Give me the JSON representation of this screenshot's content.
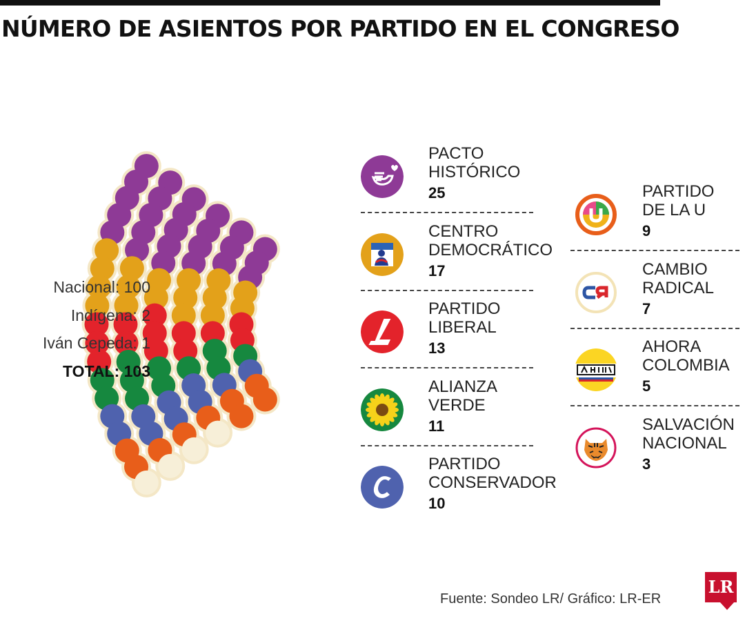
{
  "title": "NÚMERO DE ASIENTOS POR PARTIDO EN EL CONGRESO",
  "totals": {
    "nacional": "Nacional: 100",
    "indigena": "Indígena: 2",
    "cepeda": "Iván Cepeda: 1",
    "total": "TOTAL: 103"
  },
  "source": "Fuente: Sondeo LR/ Gráfico: LR-ER",
  "brand": "LR",
  "chart_data": {
    "type": "parliament",
    "title": "NÚMERO DE ASIENTOS POR PARTIDO EN EL CONGRESO",
    "categories": [
      "PACTO HISTÓRICO",
      "CENTRO DEMOCRÁTICO",
      "PARTIDO LIBERAL",
      "ALIANZA VERDE",
      "PARTIDO CONSERVADOR",
      "PARTIDO DE LA U",
      "CAMBIO RADICAL",
      "AHORA COLOMBIA",
      "SALVACIÓN NACIONAL"
    ],
    "values": [
      25,
      17,
      13,
      11,
      10,
      9,
      7,
      5,
      3
    ],
    "other_seats": [
      {
        "color": "#ffffff",
        "count": 0
      }
    ],
    "colors": [
      "#8e3a96",
      "#e3a11a",
      "#e3232b",
      "#16883f",
      "#4f62ae",
      "#e85e1a",
      "#f7efd8",
      "#fbd523",
      "#d4145a"
    ],
    "total": 103
  },
  "legend": {
    "left": [
      {
        "name": "PACTO\nHISTÓRICO",
        "seats": "25",
        "color": "#8e3a96",
        "icon": "dove-icon"
      },
      {
        "name": "CENTRO\nDEMOCRÁTICO",
        "seats": "17",
        "color": "#e3a11a",
        "icon": "figure-icon"
      },
      {
        "name": "PARTIDO\nLIBERAL",
        "seats": "13",
        "color": "#e3232b",
        "icon": "l-icon"
      },
      {
        "name": "ALIANZA\nVERDE",
        "seats": "11",
        "color": "#16883f",
        "icon": "sunflower-icon"
      },
      {
        "name": "PARTIDO\nCONSERVADOR",
        "seats": "10",
        "color": "#4f62ae",
        "icon": "c-icon"
      }
    ],
    "right": [
      {
        "name": "PARTIDO\nDE LA U",
        "seats": "9",
        "color": "#e85e1a",
        "icon": "u-icon"
      },
      {
        "name": "CAMBIO\nRADICAL",
        "seats": "7",
        "color": "#f3e9c4",
        "icon": "cr-icon"
      },
      {
        "name": "AHORA\nCOLOMBIA",
        "seats": "5",
        "color": "#fbd523",
        "icon": "ahora-icon"
      },
      {
        "name": "SALVACIÓN\nNACIONAL",
        "seats": "3",
        "color": "#d4145a",
        "icon": "tiger-icon"
      }
    ]
  }
}
